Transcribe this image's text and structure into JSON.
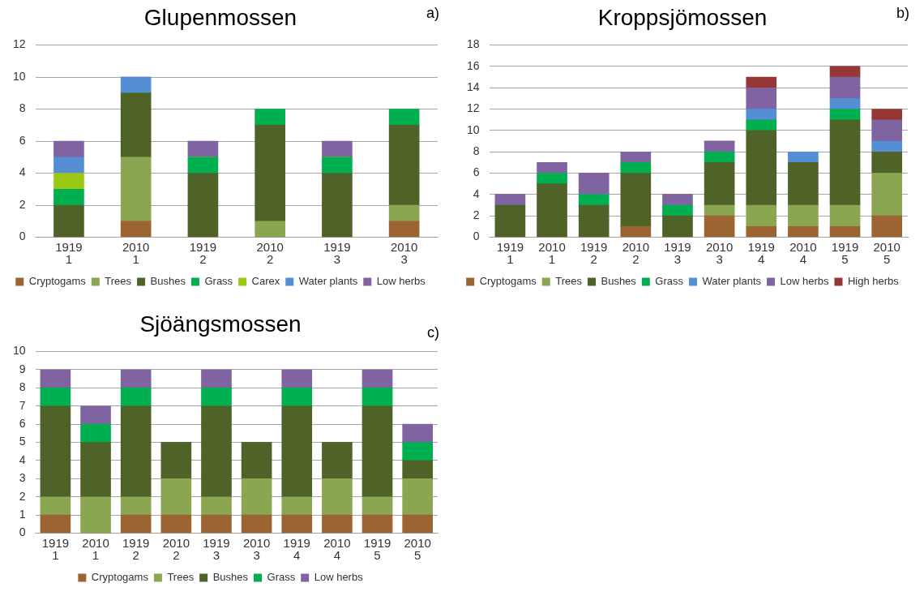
{
  "chart_data": [
    {
      "type": "bar",
      "title": "Glupenmossen",
      "annotations": [
        "a)"
      ],
      "stacked": true,
      "grid": "y",
      "legend": "bottom",
      "ylim": [
        0,
        12
      ],
      "yticks": [
        0,
        2,
        4,
        6,
        8,
        10,
        12
      ],
      "categories": [
        "1919\n1",
        "2010\n1",
        "1919\n2",
        "2010\n2",
        "1919\n3",
        "2010\n3"
      ],
      "series": [
        {
          "name": "Cryptogams",
          "color": "#9c6432",
          "values": [
            0,
            1,
            0,
            0,
            0,
            1
          ]
        },
        {
          "name": "Trees",
          "color": "#8aa650",
          "values": [
            0,
            4,
            0,
            1,
            0,
            1
          ]
        },
        {
          "name": "Bushes",
          "color": "#4f6228",
          "values": [
            2,
            4,
            4,
            6,
            4,
            5
          ]
        },
        {
          "name": "Grass",
          "color": "#00b050",
          "values": [
            1,
            0,
            1,
            1,
            1,
            1
          ]
        },
        {
          "name": "Carex",
          "color": "#9bc814",
          "values": [
            1,
            0,
            0,
            0,
            0,
            0
          ]
        },
        {
          "name": "Water plants",
          "color": "#558ed5",
          "values": [
            1,
            1,
            0,
            0,
            0,
            0
          ]
        },
        {
          "name": "Low herbs",
          "color": "#8064a2",
          "values": [
            1,
            0,
            1,
            0,
            1,
            0
          ]
        }
      ]
    },
    {
      "type": "bar",
      "title": "Kroppsjömossen",
      "annotations": [
        "b)"
      ],
      "stacked": true,
      "grid": "y",
      "legend": "bottom",
      "ylim": [
        0,
        18
      ],
      "yticks": [
        0,
        2,
        4,
        6,
        8,
        10,
        12,
        14,
        16,
        18
      ],
      "categories": [
        "1919\n1",
        "2010\n1",
        "1919\n2",
        "2010\n2",
        "1919\n3",
        "2010\n3",
        "1919\n4",
        "2010\n4",
        "1919\n5",
        "2010\n5"
      ],
      "series": [
        {
          "name": "Cryptogams",
          "color": "#9c6432",
          "values": [
            0,
            0,
            0,
            1,
            0,
            2,
            1,
            1,
            1,
            2
          ]
        },
        {
          "name": "Trees",
          "color": "#8aa650",
          "values": [
            0,
            0,
            0,
            0,
            0,
            1,
            2,
            2,
            2,
            4
          ]
        },
        {
          "name": "Bushes",
          "color": "#4f6228",
          "values": [
            3,
            5,
            3,
            5,
            2,
            4,
            7,
            4,
            8,
            2
          ]
        },
        {
          "name": "Grass",
          "color": "#00b050",
          "values": [
            0,
            1,
            1,
            1,
            1,
            1,
            1,
            0,
            1,
            0
          ]
        },
        {
          "name": "Water plants",
          "color": "#558ed5",
          "values": [
            0,
            0,
            0,
            0,
            0,
            0,
            1,
            1,
            1,
            1
          ]
        },
        {
          "name": "Low herbs",
          "color": "#8064a2",
          "values": [
            1,
            1,
            2,
            1,
            1,
            1,
            2,
            0,
            2,
            2
          ]
        },
        {
          "name": "High herbs",
          "color": "#953735",
          "values": [
            0,
            0,
            0,
            0,
            0,
            0,
            1,
            0,
            1,
            1
          ]
        }
      ]
    },
    {
      "type": "bar",
      "title": "Sjöängsmossen",
      "annotations": [
        "c)"
      ],
      "stacked": true,
      "grid": "y",
      "legend": "bottom",
      "ylim": [
        0,
        10
      ],
      "yticks": [
        0,
        1,
        2,
        3,
        4,
        5,
        6,
        7,
        8,
        9,
        10
      ],
      "categories": [
        "1919\n1",
        "2010\n1",
        "1919\n2",
        "2010\n2",
        "1919\n3",
        "2010\n3",
        "1919\n4",
        "2010\n4",
        "1919\n5",
        "2010\n5"
      ],
      "series": [
        {
          "name": "Cryptogams",
          "color": "#9c6432",
          "values": [
            1,
            0,
            1,
            1,
            1,
            1,
            1,
            1,
            1,
            1
          ]
        },
        {
          "name": "Trees",
          "color": "#8aa650",
          "values": [
            1,
            2,
            1,
            2,
            1,
            2,
            1,
            2,
            1,
            2
          ]
        },
        {
          "name": "Bushes",
          "color": "#4f6228",
          "values": [
            5,
            3,
            5,
            2,
            5,
            2,
            5,
            2,
            5,
            1
          ]
        },
        {
          "name": "Grass",
          "color": "#00b050",
          "values": [
            1,
            1,
            1,
            0,
            1,
            0,
            1,
            0,
            1,
            1
          ]
        },
        {
          "name": "Low herbs",
          "color": "#8064a2",
          "values": [
            1,
            1,
            1,
            0,
            1,
            0,
            1,
            0,
            1,
            1
          ]
        }
      ]
    }
  ]
}
